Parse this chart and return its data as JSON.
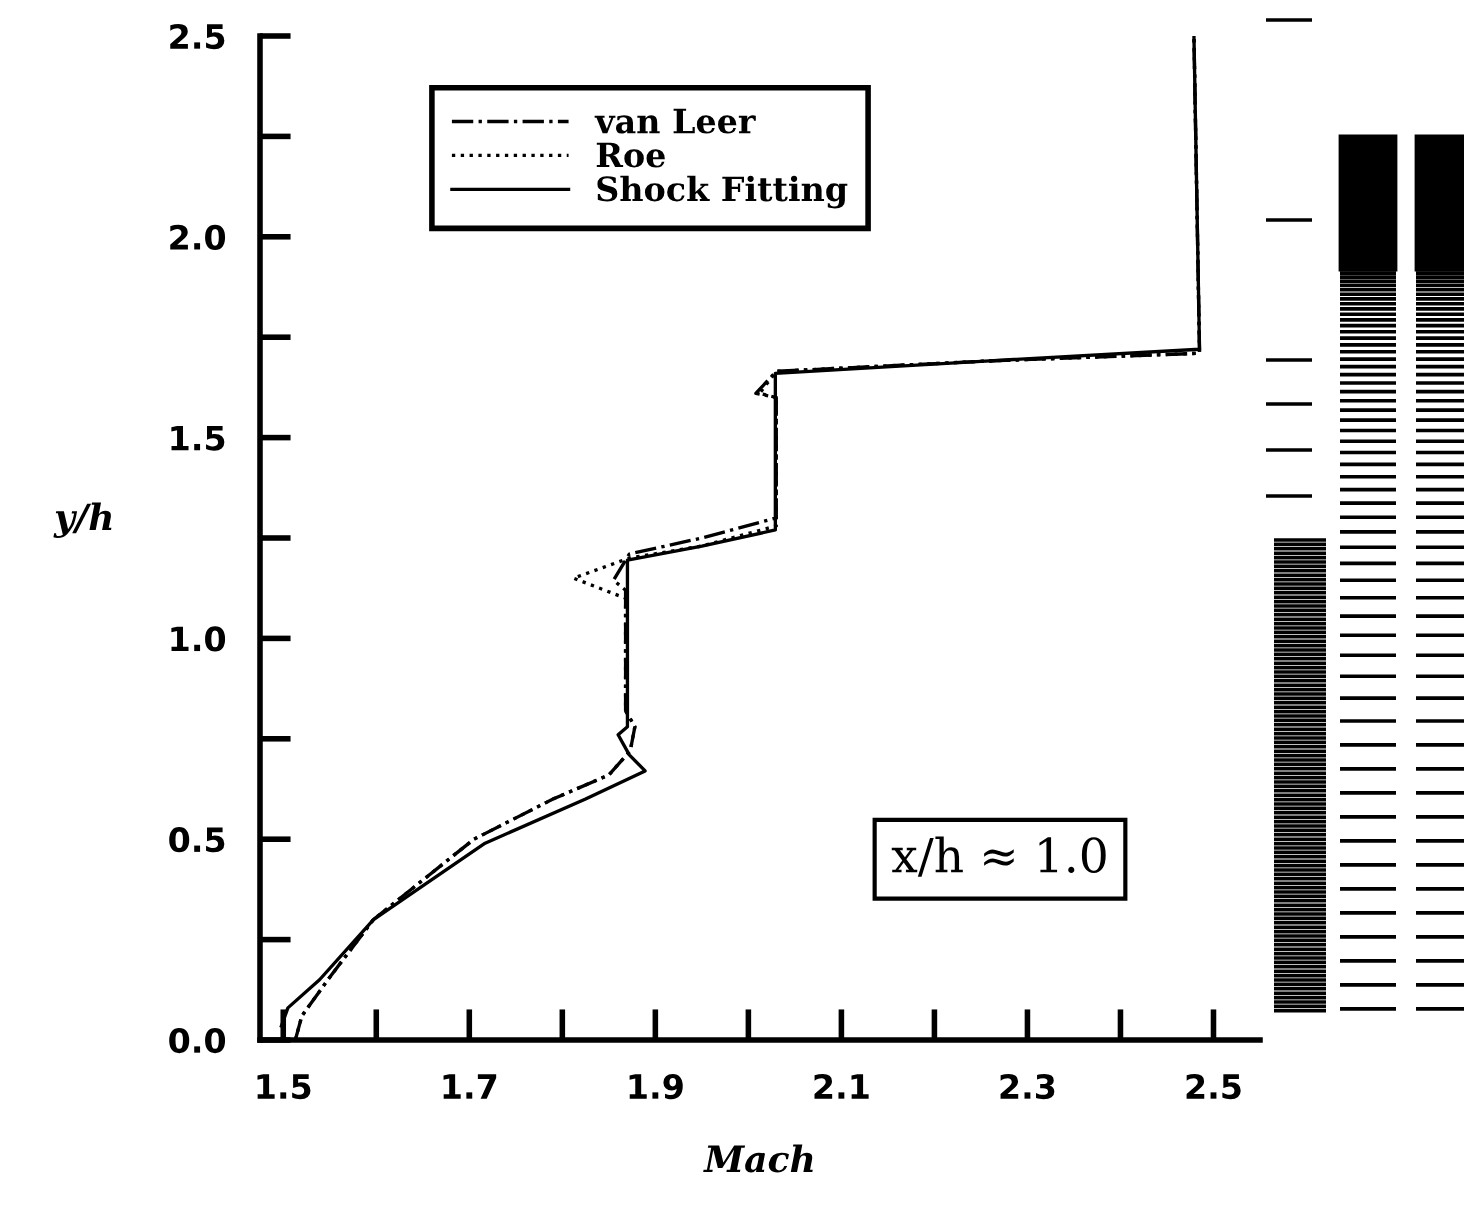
{
  "chart_data": {
    "type": "line",
    "xlabel": "Mach",
    "ylabel": "y/h",
    "xlim": [
      1.475,
      2.55
    ],
    "ylim": [
      0,
      2.5
    ],
    "xticks": [
      1.5,
      {
        "value": 1.6,
        "label": null
      },
      1.7,
      {
        "value": 1.8,
        "label": null
      },
      1.9,
      {
        "value": 2.0,
        "label": null
      },
      2.1,
      {
        "value": 2.2,
        "label": null
      },
      2.3,
      {
        "value": 2.4,
        "label": null
      },
      2.5
    ],
    "yticks": [
      {
        "value": 0,
        "label": "0.0"
      },
      {
        "value": 0.25,
        "label": null
      },
      0.5,
      {
        "value": 0.75,
        "label": null
      },
      {
        "value": 1,
        "label": "1.0"
      },
      {
        "value": 1.25,
        "label": null
      },
      1.5,
      {
        "value": 1.75,
        "label": null
      },
      {
        "value": 2,
        "label": "2.0"
      },
      {
        "value": 2.25,
        "label": null
      },
      2.5
    ],
    "grid": false,
    "legend": "top",
    "annotations": [
      "x/h ≈ 1.0"
    ],
    "series": [
      {
        "name": "van Leer",
        "color": "#000000",
        "line_style": "dashdot",
        "x": [
          1.513,
          1.52,
          1.548,
          1.597,
          1.705,
          1.79,
          1.85,
          1.873,
          1.878,
          1.868,
          1.868,
          1.855,
          1.872,
          1.95,
          2.03,
          2.03,
          2.008,
          2.03,
          2.25,
          2.485,
          2.479
        ],
        "values": [
          0.0,
          0.06,
          0.15,
          0.3,
          0.5,
          0.6,
          0.66,
          0.72,
          0.78,
          0.82,
          1.12,
          1.145,
          1.21,
          1.25,
          1.3,
          1.6,
          1.61,
          1.665,
          1.69,
          1.71,
          2.5
        ]
      },
      {
        "name": "Roe",
        "color": "#000000",
        "line_style": "dotted",
        "x": [
          1.513,
          1.52,
          1.548,
          1.597,
          1.705,
          1.79,
          1.85,
          1.873,
          1.878,
          1.868,
          1.868,
          1.812,
          1.872,
          1.95,
          2.03,
          2.03,
          2.012,
          2.03,
          2.25,
          2.485,
          2.479
        ],
        "values": [
          0.0,
          0.06,
          0.15,
          0.3,
          0.5,
          0.6,
          0.66,
          0.72,
          0.78,
          0.82,
          1.1,
          1.15,
          1.2,
          1.23,
          1.28,
          1.6,
          1.61,
          1.665,
          1.69,
          1.71,
          2.5
        ]
      },
      {
        "name": "Shock Fitting",
        "color": "#000000",
        "line_style": "solid",
        "x": [
          1.498,
          1.505,
          1.539,
          1.597,
          1.717,
          1.825,
          1.889,
          1.872,
          1.86,
          1.87,
          1.87,
          1.95,
          2.029,
          2.029,
          2.25,
          2.485,
          2.479
        ],
        "values": [
          0.035,
          0.08,
          0.15,
          0.3,
          0.49,
          0.6,
          0.67,
          0.71,
          0.76,
          0.78,
          1.195,
          1.23,
          1.27,
          1.66,
          1.69,
          1.72,
          2.5
        ]
      }
    ]
  }
}
